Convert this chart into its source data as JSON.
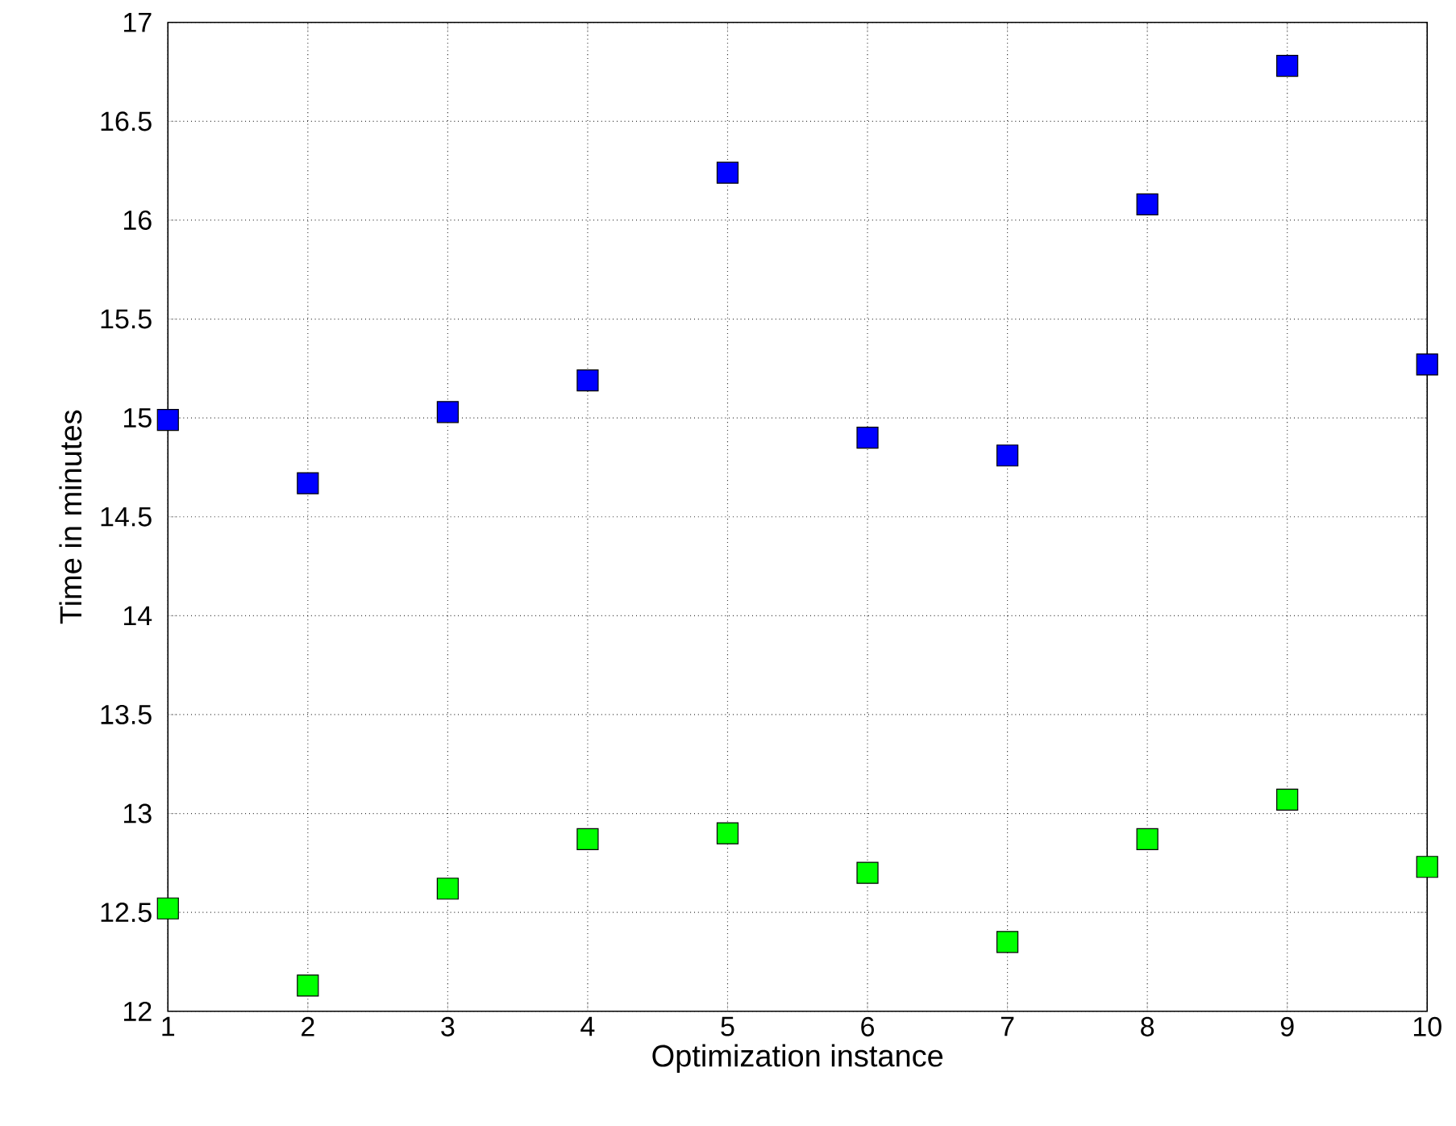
{
  "chart_data": {
    "type": "scatter",
    "xlabel": "Optimization instance",
    "ylabel": "Time in minutes",
    "x": [
      1,
      2,
      3,
      4,
      5,
      6,
      7,
      8,
      9,
      10
    ],
    "series": [
      {
        "color": "#0000ff",
        "values": [
          14.99,
          14.67,
          15.03,
          15.19,
          16.24,
          14.9,
          14.81,
          16.08,
          16.78,
          15.27
        ]
      },
      {
        "color": "#00ff00",
        "values": [
          12.52,
          12.13,
          12.62,
          12.87,
          12.9,
          12.7,
          12.35,
          12.87,
          13.07,
          12.73
        ]
      }
    ],
    "xlim": [
      1,
      10
    ],
    "ylim": [
      12,
      17
    ],
    "xticks": [
      1,
      2,
      3,
      4,
      5,
      6,
      7,
      8,
      9,
      10
    ],
    "yticks": [
      12,
      12.5,
      13,
      13.5,
      14,
      14.5,
      15,
      15.5,
      16,
      16.5,
      17
    ],
    "grid": true,
    "marker": "square"
  }
}
